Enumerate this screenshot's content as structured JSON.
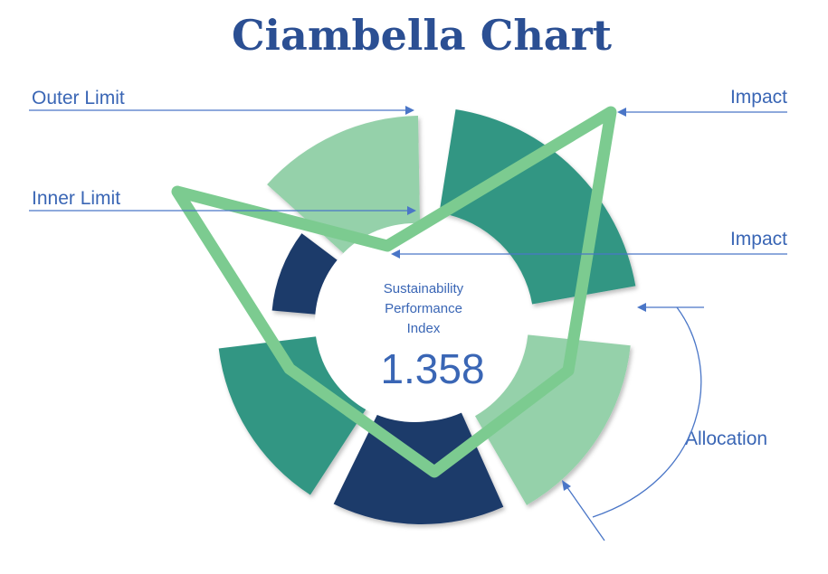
{
  "title": "Ciambella Chart",
  "labels": {
    "outer_limit": "Outer Limit",
    "inner_limit": "Inner Limit",
    "impact_top": "Impact",
    "impact_middle": "Impact",
    "allocation": "Allocation"
  },
  "center": {
    "line1": "Sustainability",
    "line2": "Performance",
    "line3": "Index",
    "value": "1.358"
  },
  "colors": {
    "light_green": "#95d1aa",
    "teal": "#339683",
    "navy": "#1c3a6b",
    "polygon": "#7ccb90",
    "text_blue": "#3a66b5"
  }
}
